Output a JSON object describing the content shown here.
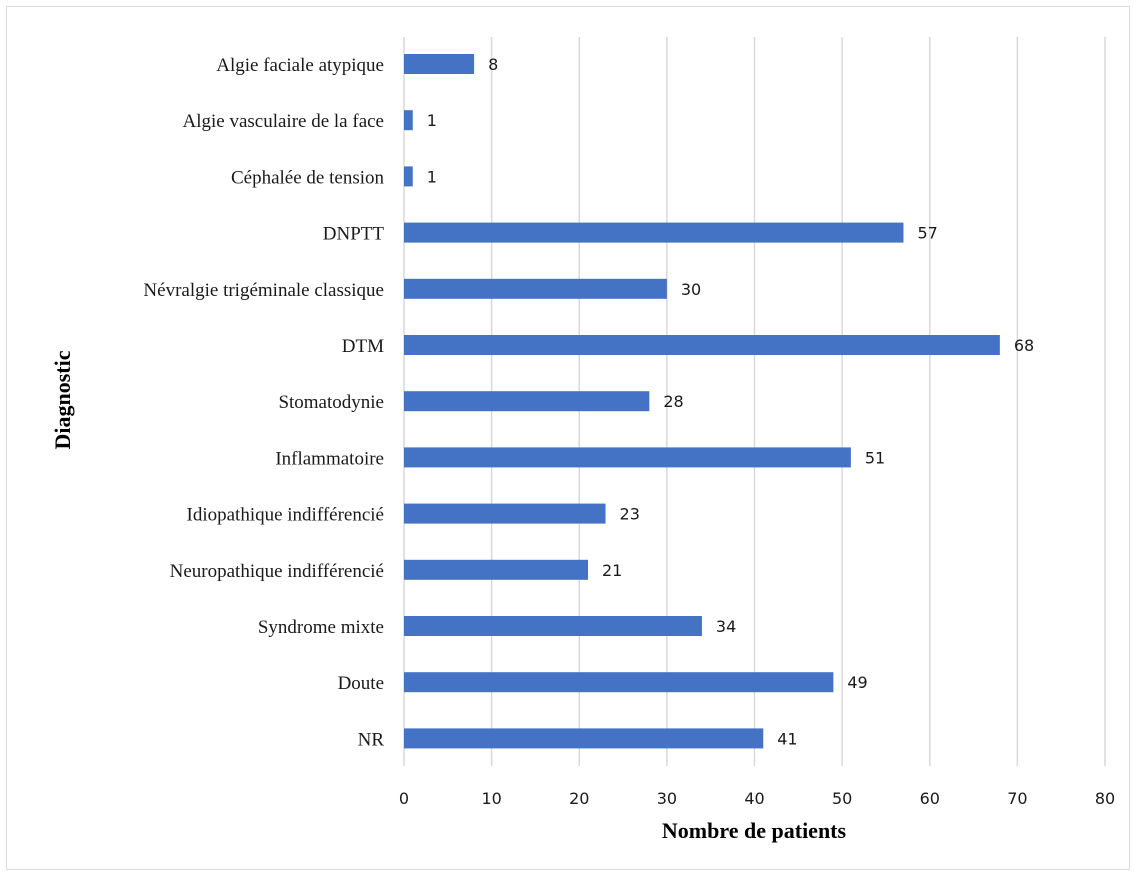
{
  "chart_data": {
    "type": "bar",
    "orientation": "horizontal",
    "categories": [
      "Algie faciale atypique",
      "Algie vasculaire de la face",
      "Céphalée de tension",
      "DNPTT",
      "Névralgie trigéminale classique",
      "DTM",
      "Stomatodynie",
      "Inflammatoire",
      "Idiopathique indifférencié",
      "Neuropathique indifférencié",
      "Syndrome mixte",
      "Doute",
      "NR"
    ],
    "values": [
      8,
      1,
      1,
      57,
      30,
      68,
      28,
      51,
      23,
      21,
      34,
      49,
      41
    ],
    "title": "",
    "xlabel": "Nombre de patients",
    "ylabel": "Diagnostic",
    "xlim": [
      0,
      80
    ],
    "xticks": [
      0,
      10,
      20,
      30,
      40,
      50,
      60,
      70,
      80
    ],
    "grid": "vertical",
    "legend": "none",
    "bar_color": "#4472C4",
    "grid_color": "#d9d9d9"
  }
}
